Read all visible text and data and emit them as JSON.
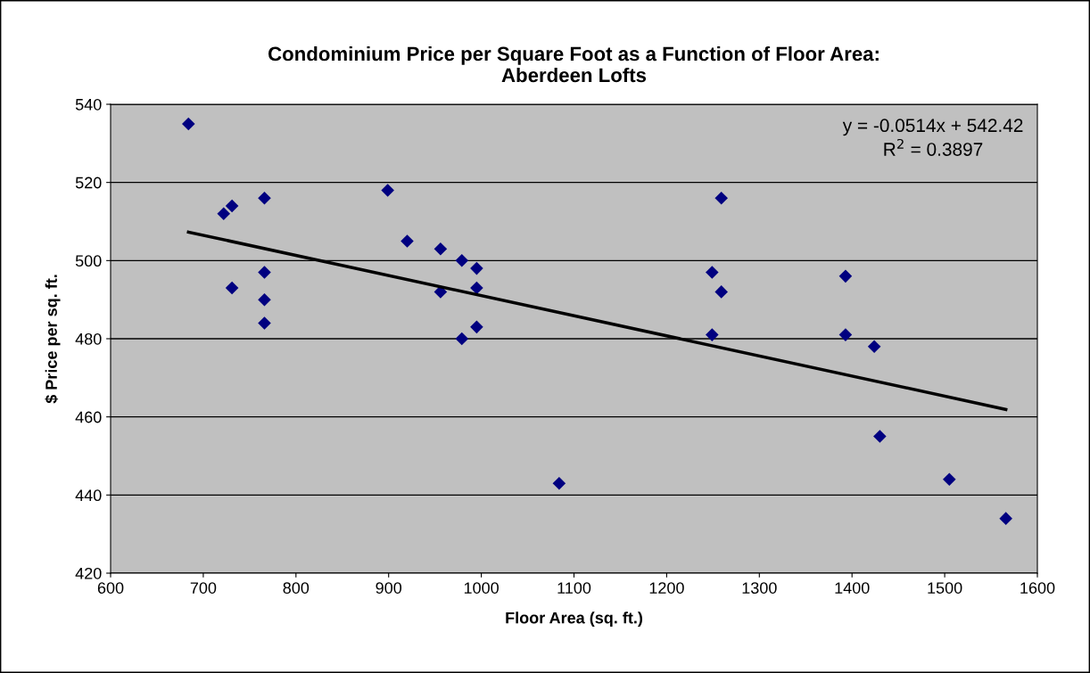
{
  "chart_data": {
    "type": "scatter",
    "title": "Condominium Price per Square Foot as a Function of Floor Area:\nAberdeen Lofts",
    "xlabel": "Floor Area (sq. ft.)",
    "ylabel": "$ Price per sq. ft.",
    "series": [
      {
        "color": "#000080",
        "marker": "diamond",
        "x": [
          684,
          722,
          731,
          766,
          899,
          920,
          956,
          979,
          766,
          731,
          766,
          766,
          956,
          979,
          995,
          995,
          995,
          1084,
          1249,
          1259,
          1249,
          1259,
          1393,
          1393,
          1424,
          1430,
          1505,
          1566
        ],
        "values": [
          535,
          512,
          514,
          516,
          518,
          505,
          503,
          500,
          497,
          493,
          490,
          484,
          492,
          480,
          498,
          493,
          483,
          443,
          497,
          492,
          481,
          516,
          496,
          481,
          478,
          455,
          444,
          434
        ]
      },
      {
        "type": "line",
        "color": "#000000",
        "marker": "none",
        "x": [
          684,
          1566
        ],
        "values": [
          507.3,
          461.9
        ]
      }
    ],
    "annotations": [
      "y = -0.0514x + 542.42\nR$^{2}$ = 0.3897"
    ],
    "xlim": [
      600,
      1600
    ],
    "xticks": [
      600,
      700,
      800,
      900,
      1000,
      1100,
      1200,
      1300,
      1400,
      1500,
      1600
    ],
    "ylim": [
      420,
      540
    ],
    "yticks": [
      420,
      440,
      460,
      480,
      500,
      520,
      540
    ],
    "grid": "y",
    "legend": false
  }
}
